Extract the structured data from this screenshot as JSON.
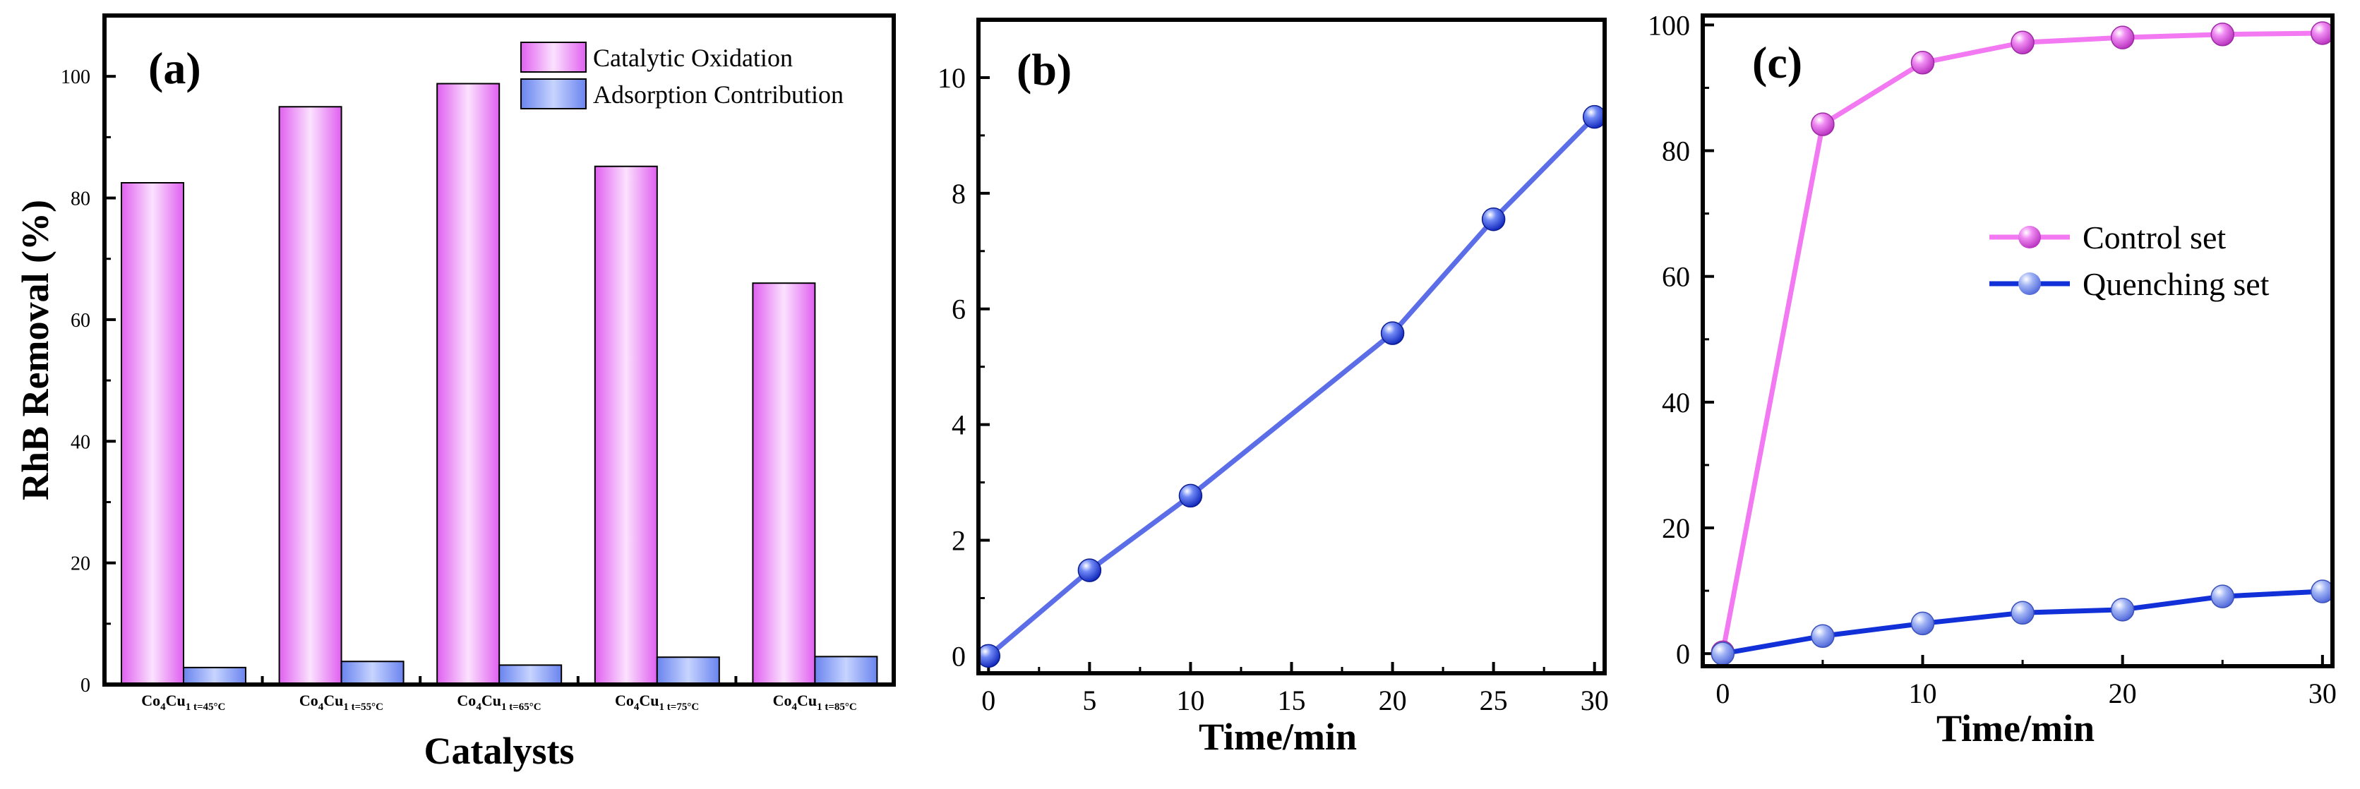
{
  "chart_data": [
    {
      "panel": "(a)",
      "type": "bar",
      "xlabel": "Catalysts",
      "ylabel": "RhB Removal (%)",
      "ylim": [
        0,
        110
      ],
      "yticks": [
        0,
        20,
        40,
        60,
        80,
        100
      ],
      "categories": [
        {
          "main": "Co",
          "s1": "4",
          "mid": "Cu",
          "s2": "1 t=45°C"
        },
        {
          "main": "Co",
          "s1": "4",
          "mid": "Cu",
          "s2": "1 t=55°C"
        },
        {
          "main": "Co",
          "s1": "4",
          "mid": "Cu",
          "s2": "1 t=65°C"
        },
        {
          "main": "Co",
          "s1": "4",
          "mid": "Cu",
          "s2": "1 t=75°C"
        },
        {
          "main": "Co",
          "s1": "4",
          "mid": "Cu",
          "s2": "1 t=85°C"
        }
      ],
      "series": [
        {
          "name": "Catalytic Oxidation",
          "values": [
            82.5,
            95.0,
            98.8,
            85.2,
            66.0
          ]
        },
        {
          "name": "Adsorption Contribution",
          "values": [
            2.8,
            3.8,
            3.2,
            4.5,
            4.6
          ]
        }
      ],
      "colors": {
        "oxidation_edge": "#e060f0",
        "oxidation_center": "#fbe2fe",
        "adsorption_edge": "#6a84ee",
        "adsorption_center": "#c7d4ff"
      }
    },
    {
      "panel": "(b)",
      "type": "line",
      "xlabel": "Time/min",
      "ylabel": "",
      "xlim": [
        -0.5,
        30.5
      ],
      "ylim": [
        -0.3,
        11.0
      ],
      "xticks": [
        0,
        5,
        10,
        15,
        20,
        25,
        30
      ],
      "yticks": [
        0,
        2,
        4,
        6,
        8,
        10
      ],
      "series": [
        {
          "name": "",
          "x": [
            0,
            5,
            10,
            20,
            25,
            30
          ],
          "y": [
            0.0,
            1.48,
            2.77,
            5.58,
            7.55,
            9.32
          ]
        }
      ],
      "colors": {
        "line": "#5b6ee8",
        "marker": "#1d3fe0"
      }
    },
    {
      "panel": "(c)",
      "type": "line",
      "xlabel": "Time/min",
      "ylabel": "",
      "xlim": [
        -1,
        30.5
      ],
      "ylim": [
        -2,
        101.5
      ],
      "xticks": [
        0,
        10,
        20,
        30
      ],
      "yticks": [
        0,
        20,
        40,
        60,
        80,
        100
      ],
      "series": [
        {
          "name": "Control set",
          "x": [
            0,
            5,
            10,
            15,
            20,
            25,
            30
          ],
          "y": [
            0.2,
            84.2,
            94.0,
            97.2,
            98.0,
            98.5,
            98.7
          ]
        },
        {
          "name": "Quenching set",
          "x": [
            0,
            5,
            10,
            15,
            20,
            25,
            30
          ],
          "y": [
            0.0,
            2.8,
            4.8,
            6.5,
            7.0,
            9.1,
            9.9
          ]
        }
      ],
      "colors": {
        "control_line": "#f279f2",
        "control_marker": "#e04ce6",
        "quench_line": "#1230d8",
        "quench_marker": "#7f97ee"
      }
    }
  ]
}
